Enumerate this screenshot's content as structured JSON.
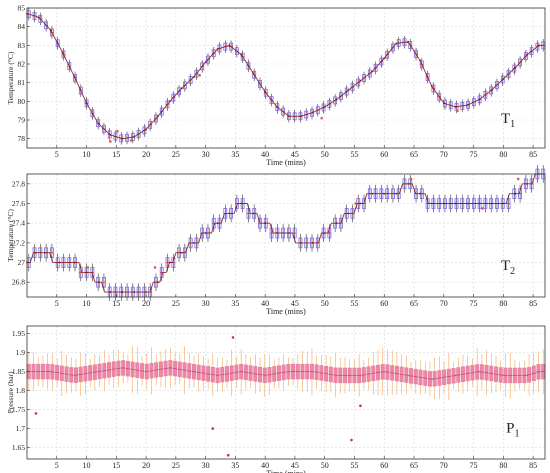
{
  "chart_data": [
    {
      "type": "line",
      "panel_label": "T",
      "panel_sub": "1",
      "xlabel": "Time (mins)",
      "ylabel": "Temperature (°C)",
      "xlim": [
        0,
        87
      ],
      "ylim": [
        77.5,
        85
      ],
      "xticks": [
        5,
        10,
        15,
        20,
        25,
        30,
        35,
        40,
        45,
        50,
        55,
        60,
        65,
        70,
        75,
        80,
        85
      ],
      "yticks": [
        78,
        79,
        80,
        81,
        82,
        83,
        84,
        85
      ],
      "grid": true,
      "colors": {
        "line": "#8b1a1a",
        "box": "#7b68ee",
        "whisker": "#333333",
        "outlier": "#e05a4e"
      },
      "x": [
        0,
        2,
        4,
        6,
        8,
        10,
        12,
        14,
        16,
        18,
        20,
        22,
        24,
        26,
        28,
        30,
        32,
        34,
        36,
        38,
        40,
        42,
        44,
        46,
        48,
        50,
        52,
        54,
        56,
        58,
        60,
        62,
        64,
        66,
        68,
        70,
        72,
        74,
        76,
        78,
        80,
        82,
        84,
        86
      ],
      "values": [
        84.7,
        84.5,
        83.8,
        82.6,
        81.3,
        79.9,
        78.8,
        78.2,
        78.0,
        78.1,
        78.5,
        79.2,
        80.0,
        80.7,
        81.3,
        82.1,
        82.8,
        83.0,
        82.5,
        81.5,
        80.5,
        79.7,
        79.2,
        79.2,
        79.4,
        79.7,
        80.1,
        80.6,
        81.1,
        81.6,
        82.3,
        83.1,
        83.2,
        82.2,
        80.8,
        79.9,
        79.7,
        79.8,
        80.1,
        80.6,
        81.2,
        81.8,
        82.5,
        83.0
      ],
      "outliers": [
        [
          15.2,
          78.4
        ],
        [
          17.5,
          77.9
        ],
        [
          29.0,
          81.4
        ],
        [
          49.5,
          79.1
        ],
        [
          72.3,
          79.5
        ],
        [
          14.0,
          77.85
        ]
      ]
    },
    {
      "type": "line",
      "panel_label": "T",
      "panel_sub": "2",
      "xlabel": "Time (mins)",
      "ylabel": "Temperature (°C)",
      "xlim": [
        0,
        87
      ],
      "ylim": [
        26.65,
        27.9
      ],
      "xticks": [
        5,
        10,
        15,
        20,
        25,
        30,
        35,
        40,
        45,
        50,
        55,
        60,
        65,
        70,
        75,
        80,
        85
      ],
      "yticks": [
        26.8,
        27,
        27.2,
        27.4,
        27.6,
        27.8
      ],
      "grid": true,
      "colors": {
        "line": "#8b1a1a",
        "box": "#7b68ee",
        "whisker": "#333333",
        "outlier": "#e05a4e"
      },
      "x": [
        0,
        1.5,
        3,
        5.5,
        8,
        10,
        12,
        14,
        16,
        18,
        20,
        22,
        24,
        26,
        28,
        30,
        32,
        34,
        36,
        38,
        40,
        42,
        44,
        46,
        48,
        50,
        52,
        54,
        56,
        58,
        60,
        62,
        64,
        66,
        68,
        70,
        72,
        74,
        76,
        78,
        80,
        82,
        84,
        86
      ],
      "values": [
        27.0,
        27.1,
        27.1,
        27.0,
        27.0,
        26.9,
        26.8,
        26.7,
        26.7,
        26.7,
        26.7,
        26.8,
        27.0,
        27.1,
        27.2,
        27.3,
        27.4,
        27.5,
        27.6,
        27.5,
        27.4,
        27.3,
        27.3,
        27.2,
        27.2,
        27.3,
        27.4,
        27.5,
        27.6,
        27.7,
        27.7,
        27.7,
        27.8,
        27.7,
        27.6,
        27.6,
        27.6,
        27.6,
        27.6,
        27.6,
        27.6,
        27.7,
        27.8,
        27.9
      ],
      "outliers": [
        [
          10.2,
          26.95
        ],
        [
          21.5,
          26.95
        ],
        [
          55.2,
          27.6
        ],
        [
          64.5,
          27.85
        ],
        [
          76.5,
          27.55
        ],
        [
          82.5,
          27.85
        ]
      ]
    },
    {
      "type": "line",
      "panel_label": "P",
      "panel_sub": "1",
      "xlabel": "Time (mins)",
      "ylabel": "Pressure (bar)",
      "xlim": [
        0,
        87
      ],
      "ylim": [
        1.62,
        1.97
      ],
      "xticks": [
        5,
        10,
        15,
        20,
        25,
        30,
        35,
        40,
        45,
        50,
        55,
        60,
        65,
        70,
        75,
        80,
        85
      ],
      "yticks": [
        1.65,
        1.7,
        1.75,
        1.8,
        1.85,
        1.9,
        1.95
      ],
      "grid": true,
      "colors": {
        "line": "#c75a9a",
        "box": "#e87fa0",
        "whisker": "#f2a65e",
        "outlier": "#c0392b"
      },
      "x": [
        0,
        4,
        8,
        12,
        16,
        20,
        24,
        28,
        32,
        36,
        40,
        44,
        48,
        52,
        56,
        60,
        64,
        68,
        72,
        76,
        80,
        84,
        86
      ],
      "values": [
        1.85,
        1.85,
        1.84,
        1.85,
        1.86,
        1.85,
        1.86,
        1.85,
        1.84,
        1.85,
        1.84,
        1.85,
        1.85,
        1.84,
        1.84,
        1.85,
        1.84,
        1.83,
        1.84,
        1.85,
        1.84,
        1.84,
        1.85
      ],
      "outliers": [
        [
          1.5,
          1.74
        ],
        [
          33.8,
          1.63
        ],
        [
          34.6,
          1.94
        ],
        [
          54.5,
          1.67
        ],
        [
          31.2,
          1.7
        ],
        [
          56.0,
          1.76
        ]
      ]
    }
  ]
}
